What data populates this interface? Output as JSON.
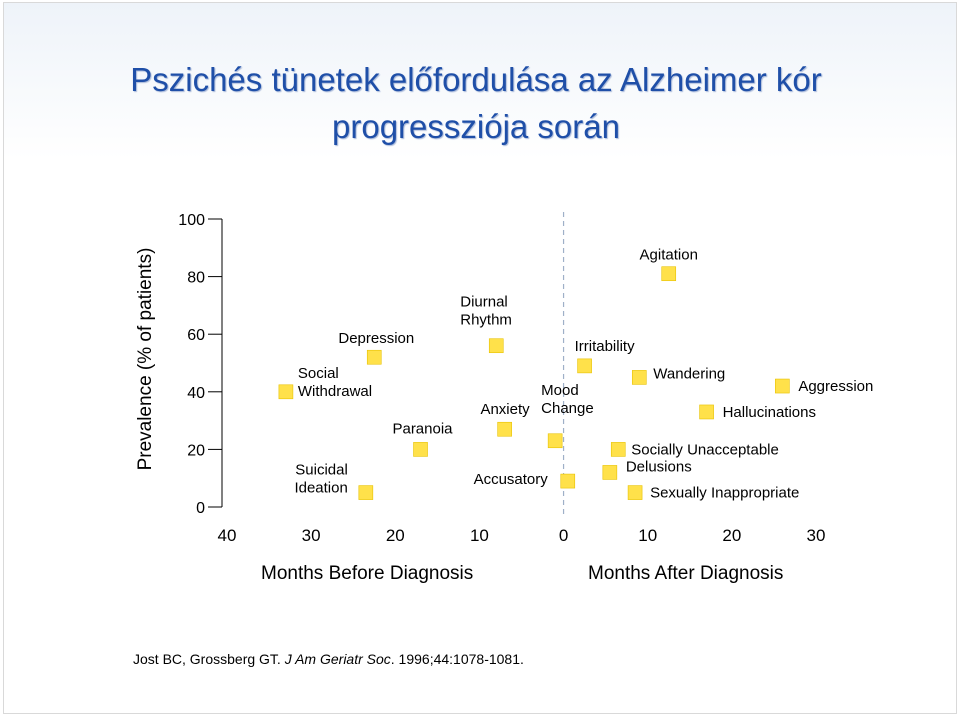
{
  "title": {
    "line1": "Pszichés tünetek előfordulása az  Alzheimer kór",
    "line2": "progressziója során"
  },
  "chart_data": {
    "type": "scatter",
    "ylabel": "Prevalence (% of patients)",
    "ylim": [
      0,
      100
    ],
    "yticks": [
      0,
      20,
      40,
      60,
      80,
      100
    ],
    "xlim": [
      -40,
      30
    ],
    "xticks": [
      -40,
      -30,
      -20,
      -10,
      0,
      10,
      20,
      30
    ],
    "xtick_labels": [
      "40",
      "30",
      "20",
      "10",
      "0",
      "10",
      "20",
      "30"
    ],
    "x_group_labels": [
      "Months Before Diagnosis",
      "Months After Diagnosis"
    ],
    "divider_x": 0,
    "marker_color": "#ffe14a",
    "points": [
      {
        "label": "Social Withdrawal",
        "x": -33,
        "y": 40
      },
      {
        "label": "Suicidal Ideation",
        "x": -23.5,
        "y": 5
      },
      {
        "label": "Depression",
        "x": -22.5,
        "y": 52
      },
      {
        "label": "Paranoia",
        "x": -17,
        "y": 20
      },
      {
        "label": "Diurnal Rhythm",
        "x": -8,
        "y": 56
      },
      {
        "label": "Anxiety",
        "x": -7,
        "y": 27
      },
      {
        "label": "Mood Change",
        "x": -1,
        "y": 23
      },
      {
        "label": "Accusatory",
        "x": 0.5,
        "y": 9
      },
      {
        "label": "Irritability",
        "x": 2.5,
        "y": 49
      },
      {
        "label": "Agitation",
        "x": 12.5,
        "y": 81
      },
      {
        "label": "Wandering",
        "x": 9,
        "y": 45
      },
      {
        "label": "Aggression",
        "x": 26,
        "y": 42
      },
      {
        "label": "Hallucinations",
        "x": 17,
        "y": 33
      },
      {
        "label": "Socially Unacceptable",
        "x": 6.5,
        "y": 20
      },
      {
        "label": "Delusions",
        "x": 5.5,
        "y": 12
      },
      {
        "label": "Sexually Inappropriate",
        "x": 8.5,
        "y": 5
      }
    ]
  },
  "citation": {
    "authors": "Jost BC, Grossberg GT.",
    "journal": "J Am Geriatr Soc",
    "rest": ". 1996;44:1078-1081."
  }
}
